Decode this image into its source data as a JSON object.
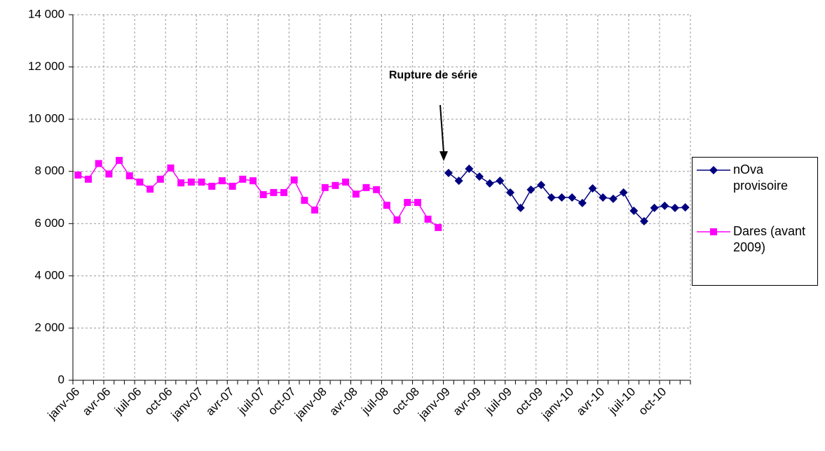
{
  "chart_data": {
    "type": "line",
    "annotation": "Rupture de série",
    "categories": [
      "janv-06",
      null,
      null,
      "avr-06",
      null,
      null,
      "juil-06",
      null,
      null,
      "oct-06",
      null,
      null,
      "janv-07",
      null,
      null,
      "avr-07",
      null,
      null,
      "juil-07",
      null,
      null,
      "oct-07",
      null,
      null,
      "janv-08",
      null,
      null,
      "avr-08",
      null,
      null,
      "juil-08",
      null,
      null,
      "oct-08",
      null,
      null,
      "janv-09",
      null,
      null,
      "avr-09",
      null,
      null,
      "juil-09",
      null,
      null,
      "oct-09",
      null,
      null,
      "janv-10",
      null,
      null,
      "avr-10",
      null,
      null,
      "juil-10",
      null,
      null,
      "oct-10",
      null,
      null
    ],
    "series": [
      {
        "name": "nOva provisoire",
        "color": "#000080",
        "marker": "diamond",
        "values": [
          null,
          null,
          null,
          null,
          null,
          null,
          null,
          null,
          null,
          null,
          null,
          null,
          null,
          null,
          null,
          null,
          null,
          null,
          null,
          null,
          null,
          null,
          null,
          null,
          null,
          null,
          null,
          null,
          null,
          null,
          null,
          null,
          null,
          null,
          null,
          null,
          7940,
          7640,
          8100,
          7800,
          7540,
          7640,
          7190,
          6600,
          7300,
          7480,
          7000,
          7000,
          7000,
          6790,
          7350,
          7000,
          6950,
          7190,
          6490,
          6090,
          6600,
          6680,
          6600,
          6620
        ]
      },
      {
        "name": "Dares (avant 2009)",
        "color": "#ff00ff",
        "marker": "square",
        "values": [
          7860,
          7700,
          8300,
          7900,
          8420,
          7830,
          7590,
          7320,
          7700,
          8130,
          7560,
          7590,
          7590,
          7430,
          7640,
          7430,
          7700,
          7640,
          7110,
          7190,
          7190,
          7670,
          6890,
          6520,
          7380,
          7460,
          7590,
          7130,
          7380,
          7300,
          6700,
          6140,
          6810,
          6810,
          6170,
          5850,
          null,
          null,
          null,
          null,
          null,
          null,
          null,
          null,
          null,
          null,
          null,
          null,
          null,
          null,
          null,
          null,
          null,
          null,
          null,
          null,
          null,
          null,
          null,
          null
        ]
      }
    ],
    "ylim": [
      0,
      14000
    ],
    "yticks": [
      0,
      {
        "value": 2000,
        "label": "2 000"
      },
      {
        "value": 4000,
        "label": "4 000"
      },
      {
        "value": 6000,
        "label": "6 000"
      },
      {
        "value": 8000,
        "label": "8 000"
      },
      {
        "value": 10000,
        "label": "10 000"
      },
      {
        "value": 12000,
        "label": "12 000"
      },
      {
        "value": 14000,
        "label": "14 000"
      }
    ],
    "grid": true,
    "legend": "right"
  }
}
